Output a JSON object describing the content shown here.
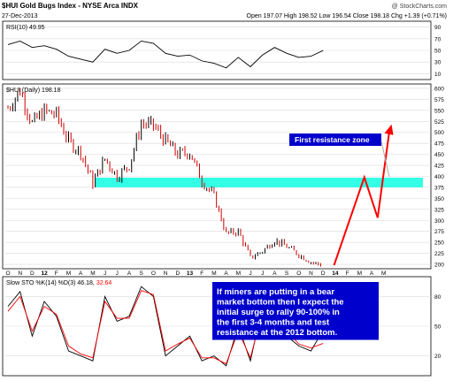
{
  "header": {
    "symbol_line": "$HUI Gold Bugs Index - NYSE Arca INDX",
    "date": "27-Dec-2013",
    "watermark": "@ StockCharts.com",
    "quote": "Open 197.07  High 198.52  Low 196.54  Close 198.18  Chg +1.39 (+0.71%)"
  },
  "colors": {
    "price": "#000000",
    "down": "#cc0000",
    "zone": "#33ffe6",
    "projection": "#ff0000",
    "grid": "#d9d9d9",
    "rsi_line": "#000000",
    "sto_k": "#000000",
    "sto_d": "#ff0000",
    "callout": "#0000cc",
    "callout_text": "#ffffff"
  },
  "rsi_panel": {
    "label": "RSI(10) 49.95",
    "ticks": [
      "90",
      "70",
      "50",
      "30",
      "10"
    ],
    "ticks_values": [
      90,
      70,
      50,
      30,
      10
    ]
  },
  "price_panel": {
    "label": "$HUI (Daily) 198.18",
    "ticks": [
      "600",
      "575",
      "550",
      "525",
      "500",
      "475",
      "450",
      "425",
      "400",
      "375",
      "350",
      "325",
      "300",
      "275",
      "250",
      "225",
      "200"
    ],
    "ticks_values": [
      600,
      575,
      550,
      525,
      500,
      475,
      450,
      425,
      400,
      375,
      350,
      325,
      300,
      275,
      250,
      225,
      200
    ]
  },
  "sto_panel": {
    "label_prefix": "Slow STO %K(14) %D(3) 46.18,",
    "label_d": "32.64",
    "ticks": [
      "80",
      "50",
      "20"
    ],
    "ticks_values": [
      80,
      50,
      20
    ]
  },
  "x_axis": {
    "labels": [
      "O",
      "N",
      "D",
      "12",
      "F",
      "M",
      "A",
      "M",
      "J",
      "J",
      "A",
      "S",
      "O",
      "N",
      "D",
      "13",
      "F",
      "M",
      "A",
      "M",
      "J",
      "J",
      "A",
      "S",
      "O",
      "N",
      "D",
      "14",
      "F",
      "M",
      "A",
      "M"
    ]
  },
  "annotations": {
    "resistance_label": "First resistance zone",
    "note": "If miners are putting in a bear market bottom then I expect the initial surge to rally 90-100% in the first 3-4 months and test resistance at the 2012 bottom."
  },
  "chart_data": [
    {
      "type": "line",
      "title": "$HUI Gold Bugs Index - NYSE Arca INDX",
      "series": [
        {
          "name": "$HUI (Daily)",
          "x": [
            "2011-10",
            "2011-11",
            "2011-12",
            "2012-01",
            "2012-02",
            "2012-03",
            "2012-04",
            "2012-05",
            "2012-06",
            "2012-07",
            "2012-08",
            "2012-09",
            "2012-10",
            "2012-11",
            "2012-12",
            "2013-01",
            "2013-02",
            "2013-03",
            "2013-04",
            "2013-05",
            "2013-06",
            "2013-07",
            "2013-08",
            "2013-09",
            "2013-10",
            "2013-11",
            "2013-12"
          ],
          "values": [
            555,
            595,
            520,
            548,
            540,
            480,
            455,
            385,
            440,
            400,
            425,
            520,
            515,
            480,
            450,
            455,
            390,
            355,
            270,
            275,
            215,
            230,
            255,
            240,
            222,
            205,
            198
          ]
        },
        {
          "name": "projection",
          "x": [
            "2013-12",
            "2014-03",
            "2014-04",
            "2014-05"
          ],
          "values": [
            198,
            398,
            306,
            510
          ]
        }
      ],
      "bands": [
        {
          "name": "First resistance zone",
          "from": 375,
          "to": 397
        }
      ],
      "ylim": [
        190,
        610
      ],
      "grid": true
    },
    {
      "type": "line",
      "title": "RSI(10)",
      "series": [
        {
          "name": "RSI(10)",
          "values": [
            60,
            66,
            55,
            58,
            52,
            40,
            35,
            30,
            52,
            45,
            50,
            66,
            62,
            45,
            40,
            42,
            32,
            28,
            20,
            38,
            22,
            42,
            55,
            45,
            38,
            40,
            49.95
          ]
        }
      ],
      "ylim": [
        0,
        100
      ]
    },
    {
      "type": "line",
      "title": "Slow STO %K(14) %D(3)",
      "series": [
        {
          "name": "%K",
          "values": [
            70,
            85,
            40,
            75,
            60,
            25,
            20,
            15,
            80,
            55,
            60,
            90,
            80,
            20,
            30,
            40,
            15,
            20,
            10,
            50,
            15,
            70,
            85,
            40,
            30,
            25,
            46.18
          ]
        },
        {
          "name": "%D",
          "values": [
            65,
            80,
            45,
            70,
            62,
            30,
            22,
            18,
            75,
            58,
            58,
            86,
            82,
            25,
            32,
            38,
            18,
            18,
            12,
            45,
            18,
            65,
            80,
            45,
            32,
            28,
            32.64
          ]
        }
      ],
      "ylim": [
        0,
        100
      ]
    }
  ]
}
